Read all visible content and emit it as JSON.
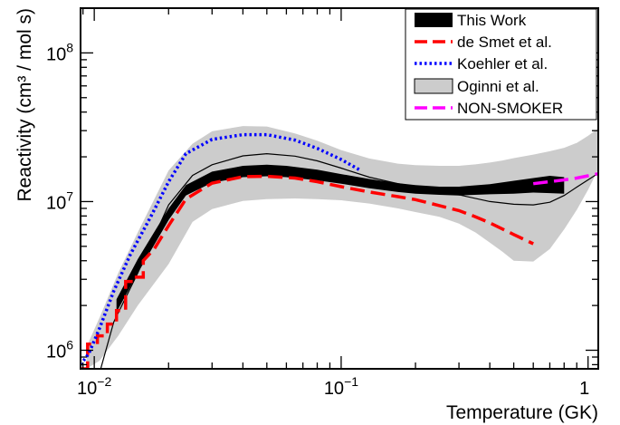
{
  "chart_data": {
    "type": "line",
    "xlabel": "Temperature (GK)",
    "ylabel": "Reactivity (cm³ / mol s)",
    "xscale": "log",
    "yscale": "log",
    "xlim": [
      0.0088,
      1.1
    ],
    "ylim": [
      750000,
      200000000
    ],
    "x_ticks": [
      {
        "value": 0.01,
        "label": "10",
        "exp": "−2"
      },
      {
        "value": 0.1,
        "label": "10",
        "exp": "−1"
      },
      {
        "value": 1,
        "label": "1",
        "exp": ""
      }
    ],
    "y_ticks": [
      {
        "value": 1000000,
        "label": "10",
        "exp": "6"
      },
      {
        "value": 10000000,
        "label": "10",
        "exp": "7"
      },
      {
        "value": 100000000,
        "label": "10",
        "exp": "8"
      }
    ],
    "legend_position": "top-right",
    "legend": [
      {
        "label": "This Work",
        "swatch": "band",
        "color": "#000000"
      },
      {
        "label": "de Smet et al.",
        "swatch": "dashed",
        "color": "#ff0000"
      },
      {
        "label": "Koehler et al.",
        "swatch": "dotted",
        "color": "#0000ff"
      },
      {
        "label": "Oginni et al.",
        "swatch": "band-outline",
        "color": "#cccccc"
      },
      {
        "label": "NON-SMOKER",
        "swatch": "dashed",
        "color": "#ff00ff"
      }
    ],
    "series": [
      {
        "name": "Oginni et al.",
        "kind": "band",
        "color": "#cccccc",
        "x": [
          0.0093,
          0.0105,
          0.0125,
          0.015,
          0.02,
          0.025,
          0.03,
          0.04,
          0.05,
          0.065,
          0.08,
          0.1,
          0.13,
          0.17,
          0.2,
          0.25,
          0.3,
          0.35,
          0.4,
          0.45,
          0.5,
          0.6,
          0.7,
          0.8,
          0.9,
          1.0,
          1.1
        ],
        "low": [
          750000,
          850000,
          1250000,
          2000000,
          3800000,
          7300000,
          8900000,
          10100000,
          10400000,
          10500000,
          10400000,
          10200000,
          9700000,
          9000000,
          8500000,
          7900000,
          7100000,
          6200000,
          5300000,
          4600000,
          4000000,
          3950000,
          4800000,
          6500000,
          8800000,
          12000000,
          16500000
        ],
        "high": [
          1050000,
          1650000,
          3300000,
          6200000,
          16200000,
          24500000,
          29700000,
          32200000,
          32000000,
          28700000,
          25700000,
          22200000,
          19500000,
          18000000,
          17600000,
          17400000,
          17400000,
          17800000,
          18300000,
          18900000,
          19600000,
          20700000,
          21800000,
          23000000,
          24800000,
          27700000,
          31000000
        ]
      },
      {
        "name": "Oginni et al.",
        "kind": "line",
        "color": "#000000",
        "x": [
          0.0105,
          0.012,
          0.015,
          0.02,
          0.025,
          0.03,
          0.04,
          0.05,
          0.065,
          0.08,
          0.1,
          0.13,
          0.17,
          0.2,
          0.25,
          0.3,
          0.4,
          0.5,
          0.6,
          0.7,
          0.8,
          0.9,
          1.0,
          1.1
        ],
        "values": [
          700000,
          1550000,
          3300000,
          9500000,
          15000000,
          17700000,
          20300000,
          21000000,
          20200000,
          18800000,
          16800000,
          14600000,
          13200000,
          12600000,
          11800000,
          11100000,
          10000000,
          9600000,
          9500000,
          9900000,
          11000000,
          12500000,
          14000000,
          15500000
        ]
      },
      {
        "name": "This Work",
        "kind": "band",
        "color": "#000000",
        "x": [
          0.0123,
          0.015,
          0.02,
          0.0235,
          0.03,
          0.04,
          0.05,
          0.06,
          0.08,
          0.1,
          0.13,
          0.17,
          0.2,
          0.25,
          0.3,
          0.4,
          0.5,
          0.6,
          0.7,
          0.8
        ],
        "low": [
          1800000,
          3300000,
          7500000,
          11000000,
          13400000,
          14600000,
          14800000,
          14600000,
          13900000,
          13200000,
          12300000,
          11600000,
          11300000,
          11100000,
          11000000,
          11200000,
          11300000,
          11500000,
          11400000,
          11300000
        ],
        "high": [
          2200000,
          4100000,
          9000000,
          12900000,
          15900000,
          17400000,
          17700000,
          17400000,
          16400000,
          15300000,
          14200000,
          13300000,
          12900000,
          12600000,
          12600000,
          13100000,
          13800000,
          14400000,
          14900000,
          14600000
        ]
      },
      {
        "name": "de Smet et al.",
        "kind": "line",
        "color": "#ff0000",
        "x": [
          0.0088,
          0.0094,
          0.0094,
          0.0103,
          0.0103,
          0.0113,
          0.0113,
          0.0123,
          0.0123,
          0.0134,
          0.0134,
          0.0144,
          0.0144,
          0.0158,
          0.0158,
          0.0175,
          0.02,
          0.0235,
          0.03,
          0.04,
          0.05,
          0.065,
          0.08,
          0.1,
          0.13,
          0.17,
          0.2,
          0.25,
          0.3,
          0.35,
          0.4,
          0.5,
          0.6
        ],
        "values": [
          750000,
          750000,
          1100000,
          1100000,
          1250000,
          1250000,
          1500000,
          1500000,
          1850000,
          1850000,
          2900000,
          2900000,
          3100000,
          3100000,
          4000000,
          4800000,
          6900000,
          10400000,
          13300000,
          14700000,
          14800000,
          14400000,
          13600000,
          12600000,
          11600000,
          10800000,
          10300000,
          9400000,
          8700000,
          7900000,
          7200000,
          6000000,
          5200000
        ]
      },
      {
        "name": "Koehler et al.",
        "kind": "line",
        "color": "#0000ff",
        "x": [
          0.0088,
          0.0095,
          0.0105,
          0.012,
          0.014,
          0.017,
          0.02,
          0.0235,
          0.03,
          0.04,
          0.05,
          0.065,
          0.08,
          0.1,
          0.12
        ],
        "values": [
          800000,
          950000,
          1400000,
          2500000,
          4400000,
          8000000,
          13600000,
          21000000,
          26200000,
          28200000,
          28200000,
          25900000,
          22800000,
          19200000,
          16200000
        ]
      },
      {
        "name": "NON-SMOKER",
        "kind": "line",
        "color": "#ff00ff",
        "x": [
          0.6,
          0.7,
          0.8,
          0.9,
          1.0,
          1.1
        ],
        "values": [
          13200000,
          13600000,
          14000000,
          14400000,
          14900000,
          15400000
        ]
      }
    ]
  }
}
